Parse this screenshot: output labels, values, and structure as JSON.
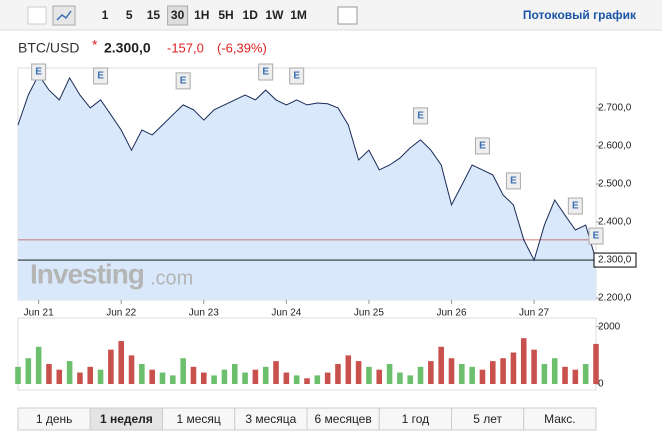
{
  "toolbar": {
    "intervals": [
      "1",
      "5",
      "15",
      "30",
      "1H",
      "5H",
      "1D",
      "1W",
      "1M"
    ],
    "selected": 3,
    "link": "Потоковый график"
  },
  "header": {
    "symbol": "BTC/USD",
    "marker": "*",
    "price": "2.300,0",
    "change": "-157,0",
    "change_pct": "(-6,39%)"
  },
  "watermark": "Investing",
  "watermark_suffix": ".com",
  "chart_data": [
    {
      "type": "area",
      "color": "#1b2a57",
      "fill": "#d9e9fb",
      "categories": [
        null,
        null,
        "Jun 21",
        null,
        null,
        null,
        null,
        null,
        null,
        null,
        "Jun 22",
        null,
        null,
        null,
        null,
        null,
        null,
        null,
        "Jun 23",
        null,
        null,
        null,
        null,
        null,
        null,
        null,
        "Jun 24",
        null,
        null,
        null,
        null,
        null,
        null,
        null,
        "Jun 25",
        null,
        null,
        null,
        null,
        null,
        null,
        null,
        "Jun 26",
        null,
        null,
        null,
        null,
        null,
        null,
        null,
        "Jun 27",
        null,
        null,
        null,
        null,
        null,
        null
      ],
      "values": [
        2655,
        2734,
        2787,
        2747,
        2721,
        2779,
        2734,
        2700,
        2721,
        2682,
        2642,
        2589,
        2642,
        2629,
        2655,
        2682,
        2708,
        2695,
        2668,
        2695,
        2708,
        2721,
        2734,
        2721,
        2747,
        2721,
        2708,
        2721,
        2708,
        2713,
        2711,
        2700,
        2655,
        2563,
        2589,
        2537,
        2550,
        2568,
        2595,
        2616,
        2589,
        2550,
        2445,
        2497,
        2550,
        2537,
        2524,
        2471,
        2445,
        2353,
        2300,
        2392,
        2458,
        2418,
        2379,
        2392,
        2300
      ],
      "ylim": [
        2195,
        2805
      ],
      "yticks": [
        {
          "value": 2700,
          "label": "2.700,0"
        },
        {
          "value": 2600,
          "label": "2.600,0"
        },
        {
          "value": 2500,
          "label": "2.500,0"
        },
        {
          "value": 2400,
          "label": "2.400,0"
        },
        {
          "value": 2300,
          "label": "2.300,0"
        },
        {
          "value": 2200,
          "label": "2.200,0"
        }
      ],
      "reference_line": 2353,
      "reference_color": "#c0504d",
      "events": [
        {
          "label": "E",
          "index": 2
        },
        {
          "label": "E",
          "index": 8
        },
        {
          "label": "E",
          "index": 16
        },
        {
          "label": "E",
          "index": 24
        },
        {
          "label": "E",
          "index": 27
        },
        {
          "label": "E",
          "index": 39
        },
        {
          "label": "E",
          "index": 45
        },
        {
          "label": "E",
          "index": 48
        },
        {
          "label": "E",
          "index": 54
        },
        {
          "label": "E",
          "index": 56
        }
      ]
    },
    {
      "type": "bar",
      "up_color": "#6cbf6c",
      "down_color": "#c9514d",
      "values": [
        600,
        900,
        1300,
        700,
        500,
        800,
        400,
        600,
        500,
        1200,
        1500,
        1000,
        700,
        500,
        400,
        300,
        900,
        600,
        400,
        300,
        500,
        700,
        400,
        500,
        600,
        800,
        400,
        300,
        200,
        300,
        400,
        700,
        1000,
        800,
        600,
        500,
        700,
        400,
        300,
        600,
        800,
        1300,
        900,
        700,
        600,
        500,
        800,
        900,
        1100,
        1600,
        1200,
        700,
        900,
        600,
        500,
        700,
        1400
      ],
      "ylim": [
        0,
        2200
      ],
      "yticks": [
        0,
        2000
      ]
    }
  ],
  "ranges": {
    "labels": [
      "1 день",
      "1 неделя",
      "1 месяц",
      "3 месяца",
      "6 месяцев",
      "1 год",
      "5 лет",
      "Макс."
    ],
    "selected": 1
  }
}
